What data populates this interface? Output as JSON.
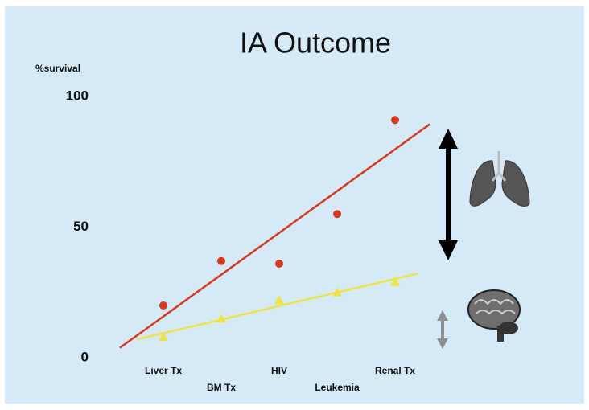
{
  "chart_data": {
    "type": "scatter",
    "title": "IA Outcome",
    "y_label": "%survival",
    "categories": [
      "Liver Tx",
      "BM Tx",
      "HIV",
      "Leukemia",
      "Renal Tx"
    ],
    "series": [
      {
        "color": "#d63a1e",
        "marker": "circle",
        "values": [
          20,
          37,
          36,
          55,
          91
        ]
      },
      {
        "color": "#eee445",
        "marker": "triangle",
        "values": [
          8,
          15,
          22,
          25,
          29
        ]
      }
    ],
    "trendline": true,
    "ylim": [
      0,
      100
    ],
    "yticks": [
      0,
      50,
      100
    ]
  }
}
